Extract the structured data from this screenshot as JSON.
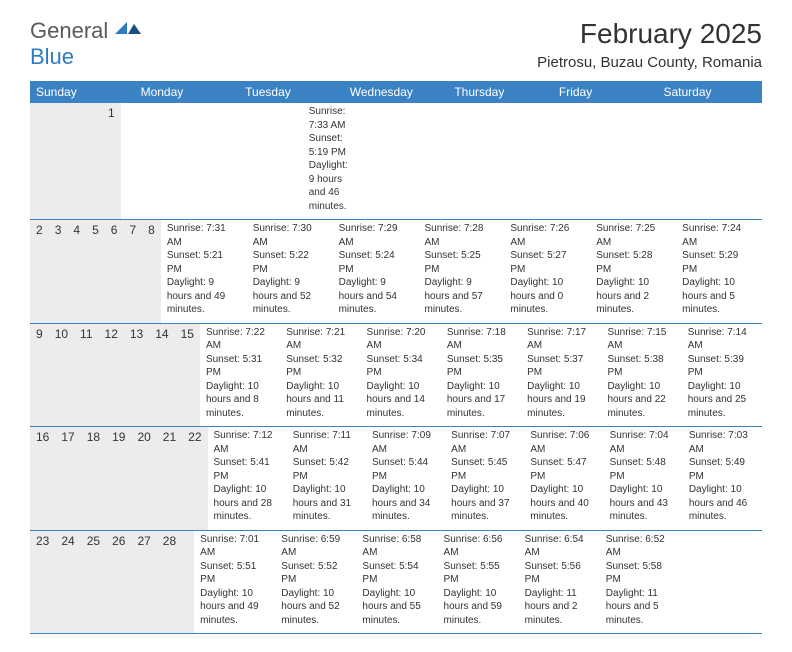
{
  "brand": {
    "general": "General",
    "blue": "Blue"
  },
  "header": {
    "title": "February 2025",
    "location": "Pietrosu, Buzau County, Romania"
  },
  "colors": {
    "header_bar": "#3b82c4",
    "week_divider": "#3b82c4",
    "daynum_bg": "#ececec",
    "text": "#333333",
    "logo_gray": "#5a5a5a",
    "logo_blue": "#2f7bbf",
    "background": "#ffffff"
  },
  "weekdays": [
    "Sunday",
    "Monday",
    "Tuesday",
    "Wednesday",
    "Thursday",
    "Friday",
    "Saturday"
  ],
  "weeks": [
    [
      {
        "n": "",
        "lines": []
      },
      {
        "n": "",
        "lines": []
      },
      {
        "n": "",
        "lines": []
      },
      {
        "n": "",
        "lines": []
      },
      {
        "n": "",
        "lines": []
      },
      {
        "n": "",
        "lines": []
      },
      {
        "n": "1",
        "lines": [
          "Sunrise: 7:33 AM",
          "Sunset: 5:19 PM",
          "Daylight: 9 hours and 46 minutes."
        ]
      }
    ],
    [
      {
        "n": "2",
        "lines": [
          "Sunrise: 7:31 AM",
          "Sunset: 5:21 PM",
          "Daylight: 9 hours and 49 minutes."
        ]
      },
      {
        "n": "3",
        "lines": [
          "Sunrise: 7:30 AM",
          "Sunset: 5:22 PM",
          "Daylight: 9 hours and 52 minutes."
        ]
      },
      {
        "n": "4",
        "lines": [
          "Sunrise: 7:29 AM",
          "Sunset: 5:24 PM",
          "Daylight: 9 hours and 54 minutes."
        ]
      },
      {
        "n": "5",
        "lines": [
          "Sunrise: 7:28 AM",
          "Sunset: 5:25 PM",
          "Daylight: 9 hours and 57 minutes."
        ]
      },
      {
        "n": "6",
        "lines": [
          "Sunrise: 7:26 AM",
          "Sunset: 5:27 PM",
          "Daylight: 10 hours and 0 minutes."
        ]
      },
      {
        "n": "7",
        "lines": [
          "Sunrise: 7:25 AM",
          "Sunset: 5:28 PM",
          "Daylight: 10 hours and 2 minutes."
        ]
      },
      {
        "n": "8",
        "lines": [
          "Sunrise: 7:24 AM",
          "Sunset: 5:29 PM",
          "Daylight: 10 hours and 5 minutes."
        ]
      }
    ],
    [
      {
        "n": "9",
        "lines": [
          "Sunrise: 7:22 AM",
          "Sunset: 5:31 PM",
          "Daylight: 10 hours and 8 minutes."
        ]
      },
      {
        "n": "10",
        "lines": [
          "Sunrise: 7:21 AM",
          "Sunset: 5:32 PM",
          "Daylight: 10 hours and 11 minutes."
        ]
      },
      {
        "n": "11",
        "lines": [
          "Sunrise: 7:20 AM",
          "Sunset: 5:34 PM",
          "Daylight: 10 hours and 14 minutes."
        ]
      },
      {
        "n": "12",
        "lines": [
          "Sunrise: 7:18 AM",
          "Sunset: 5:35 PM",
          "Daylight: 10 hours and 17 minutes."
        ]
      },
      {
        "n": "13",
        "lines": [
          "Sunrise: 7:17 AM",
          "Sunset: 5:37 PM",
          "Daylight: 10 hours and 19 minutes."
        ]
      },
      {
        "n": "14",
        "lines": [
          "Sunrise: 7:15 AM",
          "Sunset: 5:38 PM",
          "Daylight: 10 hours and 22 minutes."
        ]
      },
      {
        "n": "15",
        "lines": [
          "Sunrise: 7:14 AM",
          "Sunset: 5:39 PM",
          "Daylight: 10 hours and 25 minutes."
        ]
      }
    ],
    [
      {
        "n": "16",
        "lines": [
          "Sunrise: 7:12 AM",
          "Sunset: 5:41 PM",
          "Daylight: 10 hours and 28 minutes."
        ]
      },
      {
        "n": "17",
        "lines": [
          "Sunrise: 7:11 AM",
          "Sunset: 5:42 PM",
          "Daylight: 10 hours and 31 minutes."
        ]
      },
      {
        "n": "18",
        "lines": [
          "Sunrise: 7:09 AM",
          "Sunset: 5:44 PM",
          "Daylight: 10 hours and 34 minutes."
        ]
      },
      {
        "n": "19",
        "lines": [
          "Sunrise: 7:07 AM",
          "Sunset: 5:45 PM",
          "Daylight: 10 hours and 37 minutes."
        ]
      },
      {
        "n": "20",
        "lines": [
          "Sunrise: 7:06 AM",
          "Sunset: 5:47 PM",
          "Daylight: 10 hours and 40 minutes."
        ]
      },
      {
        "n": "21",
        "lines": [
          "Sunrise: 7:04 AM",
          "Sunset: 5:48 PM",
          "Daylight: 10 hours and 43 minutes."
        ]
      },
      {
        "n": "22",
        "lines": [
          "Sunrise: 7:03 AM",
          "Sunset: 5:49 PM",
          "Daylight: 10 hours and 46 minutes."
        ]
      }
    ],
    [
      {
        "n": "23",
        "lines": [
          "Sunrise: 7:01 AM",
          "Sunset: 5:51 PM",
          "Daylight: 10 hours and 49 minutes."
        ]
      },
      {
        "n": "24",
        "lines": [
          "Sunrise: 6:59 AM",
          "Sunset: 5:52 PM",
          "Daylight: 10 hours and 52 minutes."
        ]
      },
      {
        "n": "25",
        "lines": [
          "Sunrise: 6:58 AM",
          "Sunset: 5:54 PM",
          "Daylight: 10 hours and 55 minutes."
        ]
      },
      {
        "n": "26",
        "lines": [
          "Sunrise: 6:56 AM",
          "Sunset: 5:55 PM",
          "Daylight: 10 hours and 59 minutes."
        ]
      },
      {
        "n": "27",
        "lines": [
          "Sunrise: 6:54 AM",
          "Sunset: 5:56 PM",
          "Daylight: 11 hours and 2 minutes."
        ]
      },
      {
        "n": "28",
        "lines": [
          "Sunrise: 6:52 AM",
          "Sunset: 5:58 PM",
          "Daylight: 11 hours and 5 minutes."
        ]
      },
      {
        "n": "",
        "lines": []
      }
    ]
  ]
}
